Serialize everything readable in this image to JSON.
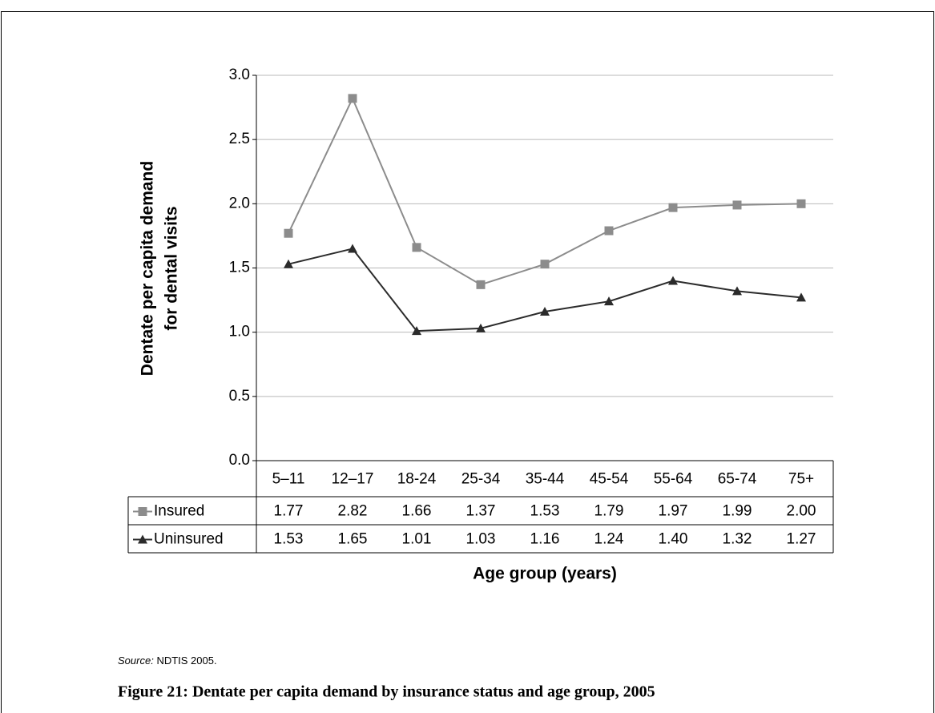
{
  "chart_data": {
    "type": "line",
    "y_label": [
      "Dentate per capita demand",
      "for dental visits"
    ],
    "x_label": "Age group (years)",
    "categories": [
      "5–11",
      "12–17",
      "18-24",
      "25-34",
      "35-44",
      "45-54",
      "55-64",
      "65-74",
      "75+"
    ],
    "series": [
      {
        "name": "Insured",
        "color": "#8c8c8c",
        "marker": "square",
        "values": [
          1.77,
          2.82,
          1.66,
          1.37,
          1.53,
          1.79,
          1.97,
          1.99,
          2.0
        ],
        "value_labels": [
          "1.77",
          "2.82",
          "1.66",
          "1.37",
          "1.53",
          "1.79",
          "1.97",
          "1.99",
          "2.00"
        ]
      },
      {
        "name": "Uninsured",
        "color": "#2b2b2b",
        "marker": "triangle",
        "values": [
          1.53,
          1.65,
          1.01,
          1.03,
          1.16,
          1.24,
          1.4,
          1.32,
          1.27
        ],
        "value_labels": [
          "1.53",
          "1.65",
          "1.01",
          "1.03",
          "1.16",
          "1.24",
          "1.40",
          "1.32",
          "1.27"
        ]
      }
    ],
    "ylim": [
      0,
      3
    ],
    "yticks": [
      {
        "value": 0,
        "label": "0.0"
      },
      0.5,
      {
        "value": 1,
        "label": "1.0"
      },
      1.5,
      {
        "value": 2,
        "label": "2.0"
      },
      2.5,
      {
        "value": 3,
        "label": "3.0"
      }
    ],
    "grid": true
  },
  "source": {
    "label": "Source:",
    "text": "NDTIS 2005."
  },
  "caption": "Figure 21: Dentate per capita demand by insurance status and age group, 2005"
}
